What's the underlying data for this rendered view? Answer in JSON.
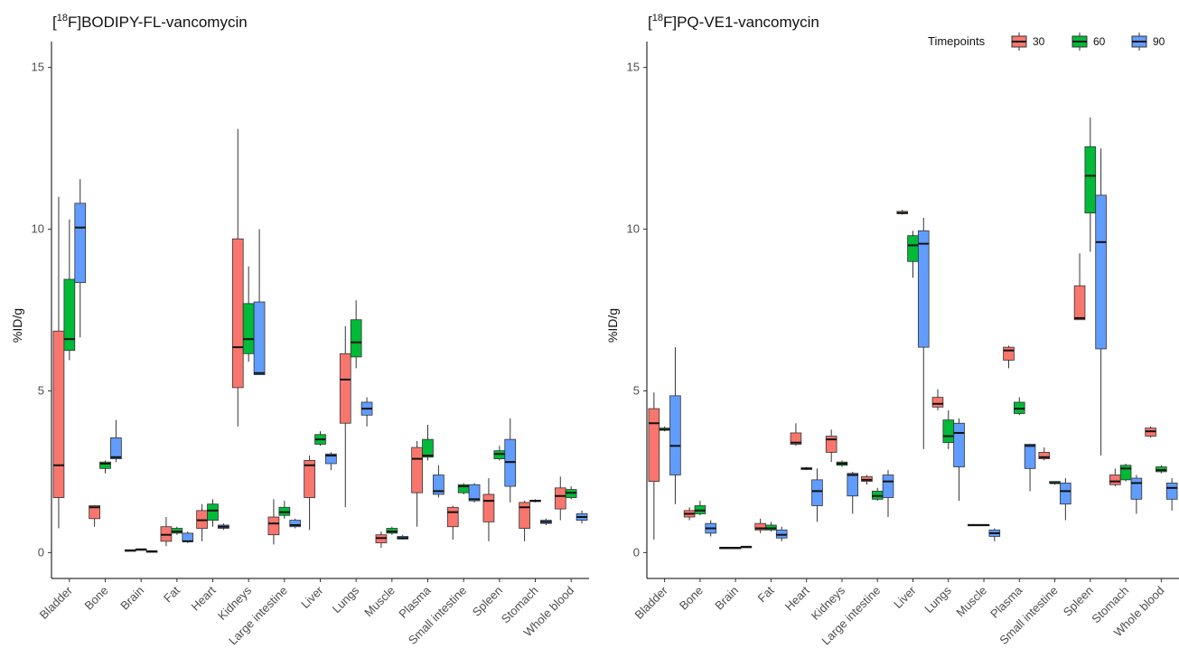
{
  "legend": {
    "title": "Timepoints",
    "position": "top-right",
    "entries": [
      {
        "label": "30",
        "color": "#F8766D"
      },
      {
        "label": "60",
        "color": "#00BA38"
      },
      {
        "label": "90",
        "color": "#619CFF"
      }
    ]
  },
  "chart_data": [
    {
      "type": "boxplot",
      "title_prefix": "18",
      "title_bracket": "[",
      "title_main": "F]BODIPY-FL-vancomycin",
      "xlabel": "",
      "ylabel": "%ID/g",
      "ylim": [
        -0.8,
        15.8
      ],
      "yticks": [
        0,
        5,
        10,
        15
      ],
      "grid": false,
      "categories": [
        "Bladder",
        "Bone",
        "Brain",
        "Fat",
        "Heart",
        "Kidneys",
        "Large intestine",
        "Liver",
        "Lungs",
        "Muscle",
        "Plasma",
        "Small intestine",
        "Spleen",
        "Stomach",
        "Whole blood"
      ],
      "series": [
        {
          "name": "30",
          "color": "#F8766D",
          "boxes": [
            [
              0.75,
              1.7,
              2.7,
              6.85,
              11.0
            ],
            [
              0.8,
              1.05,
              1.4,
              1.45,
              1.45
            ],
            [
              0.05,
              0.06,
              0.07,
              0.08,
              0.08
            ],
            [
              0.2,
              0.35,
              0.55,
              0.8,
              1.1
            ],
            [
              0.35,
              0.75,
              1.0,
              1.3,
              1.5
            ],
            [
              3.9,
              5.1,
              6.35,
              9.7,
              13.1
            ],
            [
              0.25,
              0.55,
              0.9,
              1.1,
              1.65
            ],
            [
              0.7,
              1.7,
              2.7,
              2.85,
              3.0
            ],
            [
              1.4,
              4.0,
              5.35,
              6.15,
              7.0
            ],
            [
              0.15,
              0.3,
              0.45,
              0.55,
              0.65
            ],
            [
              0.8,
              1.85,
              2.9,
              3.25,
              3.45
            ],
            [
              0.4,
              0.8,
              1.25,
              1.4,
              1.45
            ],
            [
              0.35,
              0.95,
              1.6,
              1.8,
              2.3
            ],
            [
              0.35,
              0.75,
              1.4,
              1.55,
              1.6
            ],
            [
              1.0,
              1.35,
              1.75,
              2.0,
              2.35
            ]
          ]
        },
        {
          "name": "60",
          "color": "#00BA38",
          "boxes": [
            [
              5.95,
              6.25,
              6.6,
              8.45,
              10.3
            ],
            [
              2.45,
              2.6,
              2.75,
              2.8,
              2.85
            ],
            [
              0.08,
              0.09,
              0.1,
              0.11,
              0.11
            ],
            [
              0.55,
              0.6,
              0.65,
              0.75,
              0.8
            ],
            [
              0.8,
              1.0,
              1.3,
              1.5,
              1.65
            ],
            [
              5.9,
              6.15,
              6.6,
              7.7,
              8.85
            ],
            [
              1.05,
              1.15,
              1.25,
              1.4,
              1.6
            ],
            [
              3.3,
              3.35,
              3.5,
              3.65,
              3.75
            ],
            [
              5.7,
              6.05,
              6.5,
              7.2,
              7.8
            ],
            [
              0.55,
              0.6,
              0.65,
              0.75,
              0.8
            ],
            [
              2.85,
              2.95,
              3.0,
              3.5,
              3.95
            ],
            [
              1.8,
              1.85,
              2.05,
              2.1,
              2.15
            ],
            [
              2.85,
              2.9,
              3.05,
              3.15,
              3.3
            ],
            [
              1.55,
              1.58,
              1.6,
              1.62,
              1.65
            ],
            [
              1.65,
              1.7,
              1.85,
              1.95,
              2.05
            ]
          ]
        },
        {
          "name": "90",
          "color": "#619CFF",
          "boxes": [
            [
              6.65,
              8.35,
              10.05,
              10.8,
              11.55
            ],
            [
              2.8,
              2.9,
              2.95,
              3.55,
              4.1
            ],
            [
              0.02,
              0.03,
              0.04,
              0.05,
              0.06
            ],
            [
              0.3,
              0.35,
              0.35,
              0.6,
              0.65
            ],
            [
              0.7,
              0.75,
              0.8,
              0.85,
              0.9
            ],
            [
              5.5,
              5.5,
              5.55,
              7.75,
              10.0
            ],
            [
              0.75,
              0.8,
              0.85,
              1.0,
              1.05
            ],
            [
              2.55,
              2.75,
              3.0,
              3.05,
              3.1
            ],
            [
              3.9,
              4.25,
              4.45,
              4.65,
              4.8
            ],
            [
              0.4,
              0.42,
              0.45,
              0.5,
              0.55
            ],
            [
              1.7,
              1.8,
              1.9,
              2.4,
              2.7
            ],
            [
              1.55,
              1.6,
              1.65,
              2.1,
              2.15
            ],
            [
              1.55,
              2.05,
              2.8,
              3.5,
              4.15
            ],
            [
              0.85,
              0.9,
              0.95,
              1.0,
              1.05
            ],
            [
              0.9,
              1.0,
              1.1,
              1.2,
              1.3
            ]
          ]
        }
      ]
    },
    {
      "type": "boxplot",
      "title_prefix": "18",
      "title_bracket": "[",
      "title_main": "F]PQ-VE1-vancomycin",
      "xlabel": "",
      "ylabel": "%ID/g",
      "ylim": [
        -0.8,
        15.8
      ],
      "yticks": [
        0,
        5,
        10,
        15
      ],
      "grid": false,
      "categories": [
        "Bladder",
        "Bone",
        "Brain",
        "Fat",
        "Heart",
        "Kidneys",
        "Large intestine",
        "Liver",
        "Lungs",
        "Muscle",
        "Plasma",
        "Small intestine",
        "Spleen",
        "Stomach",
        "Whole blood"
      ],
      "series": [
        {
          "name": "30",
          "color": "#F8766D",
          "boxes": [
            [
              0.4,
              2.2,
              4.0,
              4.45,
              4.95
            ],
            [
              1.0,
              1.1,
              1.2,
              1.3,
              1.4
            ],
            [
              0.12,
              0.14,
              0.15,
              0.16,
              0.18
            ],
            [
              0.6,
              0.7,
              0.75,
              0.9,
              1.05
            ],
            [
              3.3,
              3.35,
              3.4,
              3.7,
              4.0
            ],
            [
              2.8,
              3.1,
              3.5,
              3.6,
              3.8
            ],
            [
              2.1,
              2.2,
              2.25,
              2.35,
              2.4
            ],
            [
              10.45,
              10.48,
              10.5,
              10.55,
              10.6
            ],
            [
              4.4,
              4.5,
              4.6,
              4.8,
              5.05
            ],
            [
              0.82,
              0.83,
              0.85,
              0.87,
              0.88
            ],
            [
              5.7,
              5.95,
              6.25,
              6.35,
              6.4
            ],
            [
              2.85,
              2.9,
              2.95,
              3.1,
              3.25
            ],
            [
              7.2,
              7.2,
              7.25,
              8.25,
              9.25
            ],
            [
              2.05,
              2.1,
              2.2,
              2.4,
              2.6
            ],
            [
              3.55,
              3.6,
              3.75,
              3.85,
              3.9
            ]
          ]
        },
        {
          "name": "60",
          "color": "#00BA38",
          "boxes": [
            [
              3.75,
              3.8,
              3.8,
              3.85,
              3.9
            ],
            [
              1.15,
              1.2,
              1.3,
              1.45,
              1.6
            ],
            [
              0.13,
              0.14,
              0.15,
              0.16,
              0.17
            ],
            [
              0.65,
              0.7,
              0.75,
              0.85,
              0.95
            ],
            [
              2.55,
              2.57,
              2.6,
              2.62,
              2.65
            ],
            [
              2.65,
              2.7,
              2.75,
              2.8,
              2.85
            ],
            [
              1.6,
              1.65,
              1.75,
              1.9,
              2.0
            ],
            [
              8.5,
              9.0,
              9.5,
              9.8,
              9.95
            ],
            [
              3.2,
              3.4,
              3.6,
              4.1,
              4.4
            ],
            [
              0.82,
              0.83,
              0.85,
              0.87,
              0.88
            ],
            [
              4.25,
              4.3,
              4.45,
              4.65,
              4.8
            ],
            [
              2.1,
              2.15,
              2.15,
              2.2,
              2.2
            ],
            [
              9.3,
              10.5,
              11.65,
              12.55,
              13.45
            ],
            [
              2.2,
              2.25,
              2.6,
              2.7,
              2.75
            ],
            [
              2.45,
              2.5,
              2.55,
              2.65,
              2.7
            ]
          ]
        },
        {
          "name": "90",
          "color": "#619CFF",
          "boxes": [
            [
              1.5,
              2.4,
              3.3,
              4.85,
              6.35
            ],
            [
              0.5,
              0.6,
              0.75,
              0.9,
              1.0
            ],
            [
              0.15,
              0.16,
              0.18,
              0.19,
              0.2
            ],
            [
              0.35,
              0.45,
              0.55,
              0.7,
              0.8
            ],
            [
              0.95,
              1.45,
              1.9,
              2.25,
              2.6
            ],
            [
              1.2,
              1.75,
              2.4,
              2.45,
              2.5
            ],
            [
              1.1,
              1.7,
              2.2,
              2.4,
              2.55
            ],
            [
              3.2,
              6.35,
              9.55,
              9.95,
              10.35
            ],
            [
              1.6,
              2.65,
              3.7,
              4.0,
              4.15
            ],
            [
              0.35,
              0.5,
              0.6,
              0.7,
              0.75
            ],
            [
              1.9,
              2.6,
              3.3,
              3.35,
              3.35
            ],
            [
              1.0,
              1.5,
              1.9,
              2.15,
              2.3
            ],
            [
              3.0,
              6.3,
              9.6,
              11.05,
              12.5
            ],
            [
              1.2,
              1.65,
              2.15,
              2.3,
              2.4
            ],
            [
              1.3,
              1.65,
              2.0,
              2.15,
              2.3
            ]
          ]
        }
      ]
    }
  ]
}
